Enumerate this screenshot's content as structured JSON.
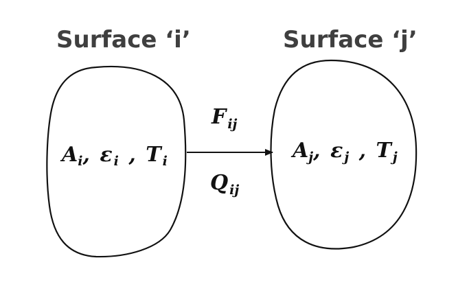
{
  "surface_i": {
    "title": "Surface ‘i’",
    "area": "A",
    "area_sub": "i",
    "emissivity": "ε",
    "emissivity_sub": "i",
    "temperature": "T",
    "temperature_sub": "i"
  },
  "surface_j": {
    "title": "Surface ‘j’",
    "area": "A",
    "area_sub": "j",
    "emissivity": "ε",
    "emissivity_sub": "j",
    "temperature": "T",
    "temperature_sub": "j"
  },
  "arrow": {
    "view_factor": "F",
    "view_factor_sub": "ij",
    "heat_rate": "Q",
    "heat_rate_sub": "ij"
  },
  "separators": {
    "comma": ","
  }
}
